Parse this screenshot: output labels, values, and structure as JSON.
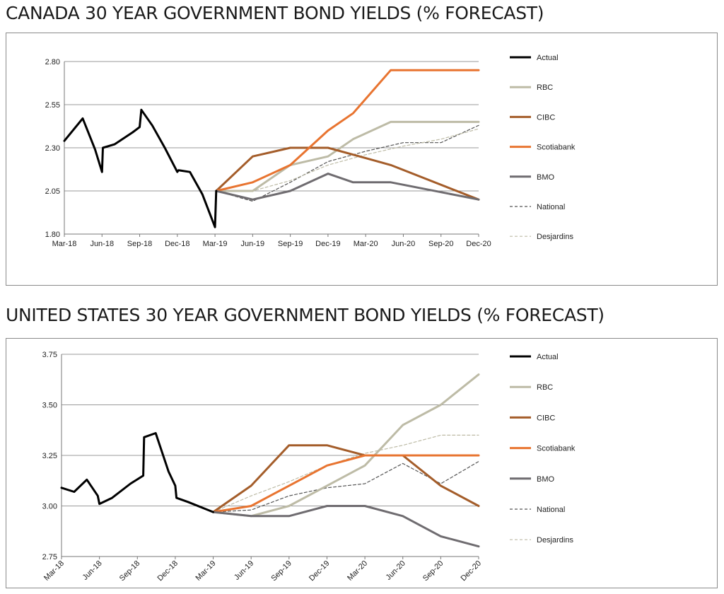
{
  "charts": {
    "canada": {
      "title": "CANADA 30 YEAR GOVERNMENT BOND YIELDS (% FORECAST)"
    },
    "us": {
      "title": "UNITED STATES 30 YEAR GOVERNMENT BOND YIELDS (% FORECAST)"
    }
  },
  "chart_data": [
    {
      "type": "line",
      "title": "CANADA 30 YEAR GOVERNMENT BOND YIELDS (% FORECAST)",
      "xlabel": "",
      "ylabel": "",
      "x_ticks": [
        "Mar-18",
        "Jun-18",
        "Sep-18",
        "Dec-18",
        "Mar-19",
        "Jun-19",
        "Sep-19",
        "Dec-19",
        "Mar-20",
        "Jun-20",
        "Sep-20",
        "Dec-20"
      ],
      "xlim": [
        "2018-03-01",
        "2020-12-01"
      ],
      "ylim": [
        1.8,
        2.8
      ],
      "y_ticks": [
        "1.80",
        "2.05",
        "2.30",
        "2.55",
        "2.80"
      ],
      "grid": "horizontal",
      "legend_position": "right",
      "series": [
        {
          "name": "Actual",
          "color": "#000000",
          "style": "solid",
          "width": 3,
          "points": [
            [
              "2018-03-01",
              2.34
            ],
            [
              "2018-04-15",
              2.47
            ],
            [
              "2018-05-15",
              2.29
            ],
            [
              "2018-06-01",
              2.16
            ],
            [
              "2018-06-03",
              2.3
            ],
            [
              "2018-07-01",
              2.32
            ],
            [
              "2018-08-15",
              2.39
            ],
            [
              "2018-09-01",
              2.42
            ],
            [
              "2018-09-05",
              2.52
            ],
            [
              "2018-10-01",
              2.43
            ],
            [
              "2018-11-01",
              2.3
            ],
            [
              "2018-12-01",
              2.16
            ],
            [
              "2018-12-04",
              2.17
            ],
            [
              "2019-01-01",
              2.16
            ],
            [
              "2019-02-01",
              2.03
            ],
            [
              "2019-03-01",
              1.84
            ],
            [
              "2019-03-04",
              2.05
            ]
          ]
        },
        {
          "name": "RBC",
          "color": "#bdbba6",
          "style": "solid",
          "width": 3,
          "points": [
            [
              "2019-03-04",
              2.05
            ],
            [
              "2019-06-01",
              2.05
            ],
            [
              "2019-09-01",
              2.2
            ],
            [
              "2019-12-01",
              2.25
            ],
            [
              "2020-02-01",
              2.35
            ],
            [
              "2020-05-01",
              2.45
            ],
            [
              "2020-12-01",
              2.45
            ]
          ]
        },
        {
          "name": "CIBC",
          "color": "#a45d2a",
          "style": "solid",
          "width": 3,
          "points": [
            [
              "2019-03-04",
              2.05
            ],
            [
              "2019-06-01",
              2.25
            ],
            [
              "2019-09-01",
              2.3
            ],
            [
              "2019-12-01",
              2.3
            ],
            [
              "2020-03-01",
              2.24
            ],
            [
              "2020-05-01",
              2.2
            ],
            [
              "2020-12-01",
              2.0
            ]
          ]
        },
        {
          "name": "Scotiabank",
          "color": "#e87430",
          "style": "solid",
          "width": 3,
          "points": [
            [
              "2019-03-04",
              2.05
            ],
            [
              "2019-06-01",
              2.1
            ],
            [
              "2019-09-01",
              2.2
            ],
            [
              "2019-12-01",
              2.4
            ],
            [
              "2020-02-01",
              2.5
            ],
            [
              "2020-05-01",
              2.75
            ],
            [
              "2020-12-01",
              2.75
            ]
          ]
        },
        {
          "name": "BMO",
          "color": "#6f6c70",
          "style": "solid",
          "width": 3,
          "points": [
            [
              "2019-03-04",
              2.05
            ],
            [
              "2019-06-01",
              2.0
            ],
            [
              "2019-09-01",
              2.05
            ],
            [
              "2019-12-01",
              2.15
            ],
            [
              "2020-02-01",
              2.1
            ],
            [
              "2020-05-01",
              2.1
            ],
            [
              "2020-12-01",
              2.0
            ]
          ]
        },
        {
          "name": "National",
          "color": "#555555",
          "style": "dashed",
          "width": 1.2,
          "points": [
            [
              "2019-03-04",
              2.05
            ],
            [
              "2019-06-01",
              1.99
            ],
            [
              "2019-09-01",
              2.1
            ],
            [
              "2019-12-01",
              2.22
            ],
            [
              "2020-03-01",
              2.28
            ],
            [
              "2020-06-01",
              2.33
            ],
            [
              "2020-09-01",
              2.33
            ],
            [
              "2020-12-01",
              2.43
            ]
          ]
        },
        {
          "name": "Desjardins",
          "color": "#bdbba6",
          "style": "dashed",
          "width": 1.2,
          "points": [
            [
              "2019-03-04",
              2.05
            ],
            [
              "2019-06-01",
              2.05
            ],
            [
              "2019-09-01",
              2.11
            ],
            [
              "2019-12-01",
              2.2
            ],
            [
              "2020-03-01",
              2.26
            ],
            [
              "2020-06-01",
              2.31
            ],
            [
              "2020-09-01",
              2.35
            ],
            [
              "2020-12-01",
              2.41
            ]
          ]
        }
      ]
    },
    {
      "type": "line",
      "title": "UNITED STATES 30 YEAR GOVERNMENT BOND YIELDS (% FORECAST)",
      "xlabel": "",
      "ylabel": "",
      "x_ticks": [
        "Mar-18",
        "Jun-18",
        "Sep-18",
        "Dec-18",
        "Mar-19",
        "Jun-19",
        "Sep-19",
        "Dec-19",
        "Mar-20",
        "Jun-20",
        "Sep-20",
        "Dec-20"
      ],
      "xlim": [
        "2018-03-01",
        "2020-12-01"
      ],
      "ylim": [
        2.75,
        3.75
      ],
      "y_ticks": [
        "2.75",
        "3.00",
        "3.25",
        "3.50",
        "3.75"
      ],
      "grid": "horizontal",
      "legend_position": "right",
      "tick_rotation": -45,
      "series": [
        {
          "name": "Actual",
          "color": "#000000",
          "style": "solid",
          "width": 3,
          "points": [
            [
              "2018-03-01",
              3.09
            ],
            [
              "2018-04-01",
              3.07
            ],
            [
              "2018-05-01",
              3.13
            ],
            [
              "2018-05-28",
              3.05
            ],
            [
              "2018-06-01",
              3.01
            ],
            [
              "2018-07-01",
              3.04
            ],
            [
              "2018-08-15",
              3.11
            ],
            [
              "2018-09-15",
              3.15
            ],
            [
              "2018-09-17",
              3.34
            ],
            [
              "2018-10-15",
              3.36
            ],
            [
              "2018-11-15",
              3.17
            ],
            [
              "2018-12-01",
              3.1
            ],
            [
              "2018-12-04",
              3.04
            ],
            [
              "2019-01-01",
              3.02
            ],
            [
              "2019-03-01",
              2.97
            ]
          ]
        },
        {
          "name": "RBC",
          "color": "#bdbba6",
          "style": "solid",
          "width": 3,
          "points": [
            [
              "2019-03-01",
              2.97
            ],
            [
              "2019-06-01",
              2.95
            ],
            [
              "2019-09-01",
              3.0
            ],
            [
              "2019-12-01",
              3.1
            ],
            [
              "2020-03-01",
              3.2
            ],
            [
              "2020-06-01",
              3.4
            ],
            [
              "2020-09-01",
              3.5
            ],
            [
              "2020-12-01",
              3.65
            ]
          ]
        },
        {
          "name": "CIBC",
          "color": "#a45d2a",
          "style": "solid",
          "width": 3,
          "points": [
            [
              "2019-03-01",
              2.97
            ],
            [
              "2019-06-01",
              3.1
            ],
            [
              "2019-09-01",
              3.3
            ],
            [
              "2019-12-01",
              3.3
            ],
            [
              "2020-03-01",
              3.25
            ],
            [
              "2020-06-01",
              3.25
            ],
            [
              "2020-09-01",
              3.1
            ],
            [
              "2020-12-01",
              3.0
            ]
          ]
        },
        {
          "name": "Scotiabank",
          "color": "#e87430",
          "style": "solid",
          "width": 3,
          "points": [
            [
              "2019-03-01",
              2.97
            ],
            [
              "2019-06-01",
              3.0
            ],
            [
              "2019-09-01",
              3.1
            ],
            [
              "2019-12-01",
              3.2
            ],
            [
              "2020-03-01",
              3.25
            ],
            [
              "2020-06-01",
              3.25
            ],
            [
              "2020-09-01",
              3.25
            ],
            [
              "2020-12-01",
              3.25
            ]
          ]
        },
        {
          "name": "BMO",
          "color": "#6f6c70",
          "style": "solid",
          "width": 3,
          "points": [
            [
              "2019-03-01",
              2.97
            ],
            [
              "2019-06-01",
              2.95
            ],
            [
              "2019-09-01",
              2.95
            ],
            [
              "2019-12-01",
              3.0
            ],
            [
              "2020-03-01",
              3.0
            ],
            [
              "2020-06-01",
              2.95
            ],
            [
              "2020-09-01",
              2.85
            ],
            [
              "2020-12-01",
              2.8
            ]
          ]
        },
        {
          "name": "National",
          "color": "#555555",
          "style": "dashed",
          "width": 1.2,
          "points": [
            [
              "2019-03-01",
              2.97
            ],
            [
              "2019-06-01",
              2.98
            ],
            [
              "2019-09-01",
              3.05
            ],
            [
              "2019-12-01",
              3.09
            ],
            [
              "2020-03-01",
              3.11
            ],
            [
              "2020-06-01",
              3.21
            ],
            [
              "2020-09-01",
              3.11
            ],
            [
              "2020-12-01",
              3.22
            ]
          ]
        },
        {
          "name": "Desjardins",
          "color": "#bdbba6",
          "style": "dashed",
          "width": 1.2,
          "points": [
            [
              "2019-03-01",
              2.97
            ],
            [
              "2019-06-01",
              3.05
            ],
            [
              "2019-09-01",
              3.12
            ],
            [
              "2019-12-01",
              3.2
            ],
            [
              "2020-03-01",
              3.26
            ],
            [
              "2020-06-01",
              3.3
            ],
            [
              "2020-09-01",
              3.35
            ],
            [
              "2020-12-01",
              3.35
            ]
          ]
        }
      ]
    }
  ]
}
